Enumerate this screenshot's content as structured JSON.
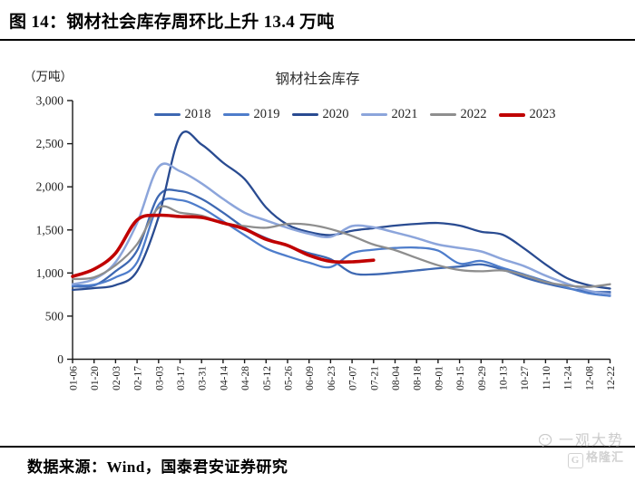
{
  "header": {
    "title": "图 14：钢材社会库存周环比上升 13.4 万吨"
  },
  "footer": {
    "source": "数据来源：Wind，国泰君安证券研究",
    "watermark_name": "一观大势",
    "watermark_logo_letter": "G",
    "watermark_logo": "格隆汇"
  },
  "chart_data": {
    "type": "line",
    "title": "钢材社会库存",
    "unit_label": "（万吨）",
    "xlabel": "",
    "ylabel": "",
    "ylim": [
      0,
      3000
    ],
    "ytick_step": 500,
    "grid": false,
    "legend_position": "top",
    "axis_color": "#1a1a1a",
    "categories": [
      "01-06",
      "01-20",
      "02-03",
      "02-17",
      "03-03",
      "03-17",
      "03-31",
      "04-14",
      "04-28",
      "05-12",
      "05-26",
      "06-09",
      "06-23",
      "07-07",
      "07-21",
      "08-04",
      "08-18",
      "09-01",
      "09-15",
      "09-29",
      "10-13",
      "10-27",
      "11-10",
      "11-24",
      "12-08",
      "12-22"
    ],
    "series": [
      {
        "name": "2018",
        "color": "#3e68b2",
        "width": 2.3,
        "values": [
          845,
          855,
          1020,
          1260,
          1895,
          1950,
          1860,
          1700,
          1525,
          1405,
          1315,
          1230,
          1160,
          1000,
          985,
          1005,
          1030,
          1055,
          1075,
          1100,
          1040,
          950,
          880,
          825,
          785,
          780
        ]
      },
      {
        "name": "2019",
        "color": "#4e7dcb",
        "width": 2.3,
        "values": [
          855,
          865,
          950,
          1125,
          1790,
          1845,
          1755,
          1600,
          1440,
          1285,
          1195,
          1120,
          1070,
          1230,
          1270,
          1290,
          1295,
          1260,
          1110,
          1140,
          1060,
          985,
          905,
          830,
          765,
          735
        ]
      },
      {
        "name": "2020",
        "color": "#294b91",
        "width": 2.3,
        "values": [
          805,
          825,
          860,
          1020,
          1650,
          2590,
          2490,
          2280,
          2090,
          1760,
          1560,
          1475,
          1440,
          1490,
          1520,
          1550,
          1570,
          1580,
          1550,
          1480,
          1445,
          1285,
          1100,
          940,
          860,
          820
        ]
      },
      {
        "name": "2021",
        "color": "#8ca5db",
        "width": 2.5,
        "values": [
          870,
          930,
          1125,
          1580,
          2230,
          2180,
          2040,
          1860,
          1700,
          1610,
          1525,
          1455,
          1420,
          1545,
          1530,
          1470,
          1405,
          1330,
          1290,
          1250,
          1160,
          1080,
          970,
          875,
          795,
          755
        ]
      },
      {
        "name": "2022",
        "color": "#8e8e8e",
        "width": 2.3,
        "values": [
          930,
          950,
          1090,
          1335,
          1755,
          1700,
          1665,
          1580,
          1545,
          1525,
          1570,
          1560,
          1510,
          1430,
          1330,
          1265,
          1175,
          1090,
          1035,
          1020,
          1030,
          975,
          895,
          855,
          840,
          870
        ]
      },
      {
        "name": "2023",
        "color": "#c00000",
        "width": 3.6,
        "values": [
          960,
          1045,
          1230,
          1615,
          1670,
          1655,
          1645,
          1580,
          1510,
          1390,
          1320,
          1205,
          1135,
          1130,
          1148
        ]
      }
    ]
  }
}
